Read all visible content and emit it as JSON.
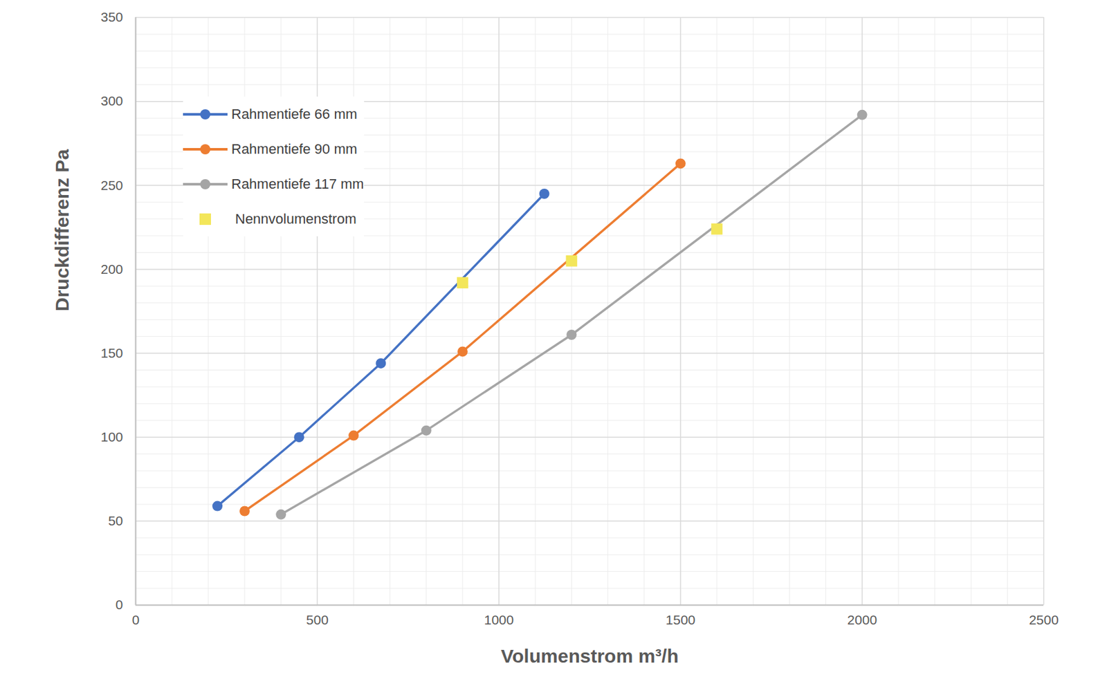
{
  "chart_data": {
    "type": "line",
    "x_label": "Volumenstrom m³/h",
    "y_label": "Druckdifferenz Pa",
    "xlim": [
      0,
      2500
    ],
    "xticks": [
      0,
      500,
      1000,
      1500,
      2000,
      2500
    ],
    "ylim": [
      0,
      350
    ],
    "yticks": [
      0,
      50,
      100,
      150,
      200,
      250,
      300,
      350
    ],
    "grid": true,
    "legend": "upper left",
    "series": [
      {
        "name": "Rahmentiefe 66 mm",
        "color": "#4472c4",
        "marker": "circle",
        "line_style": "solid",
        "x": [
          225,
          450,
          675,
          1125
        ],
        "values": [
          59,
          100,
          144,
          245
        ]
      },
      {
        "name": "Rahmentiefe 90 mm",
        "color": "#ed7d31",
        "marker": "circle",
        "line_style": "solid",
        "x": [
          300,
          600,
          900,
          1500
        ],
        "values": [
          56,
          101,
          151,
          263
        ]
      },
      {
        "name": "Rahmentiefe 117 mm",
        "color": "#a5a5a5",
        "marker": "circle",
        "line_style": "solid",
        "x": [
          400,
          800,
          1200,
          2000
        ],
        "values": [
          54,
          104,
          161,
          292
        ]
      },
      {
        "name": "Nennvolumenstrom",
        "type": "scatter",
        "color": "#f3e65a",
        "marker": "square",
        "x": [
          900,
          1200,
          1600
        ],
        "values": [
          192,
          205,
          224
        ]
      }
    ]
  }
}
